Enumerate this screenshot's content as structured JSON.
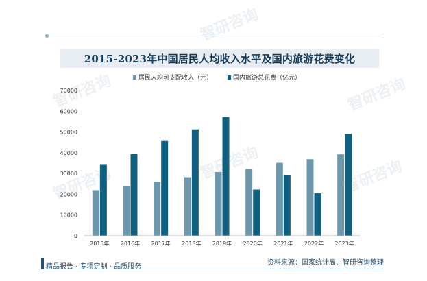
{
  "title": "2015-2023年中国居民人均收入水平及国内旅游花费变化",
  "footer": {
    "left": "精品报告 · 专项定制 · 品质服务",
    "right": "资料来源：国家统计局、智研咨询整理"
  },
  "watermark": "智研咨询",
  "colors": {
    "income": "#6d97ab",
    "spending": "#0f5f7f"
  },
  "chart_data": {
    "type": "bar",
    "categories": [
      "2015年",
      "2016年",
      "2017年",
      "2018年",
      "2019年",
      "2020年",
      "2021年",
      "2022年",
      "2023年"
    ],
    "series": [
      {
        "name": "居民人均可支配收入（元）",
        "values": [
          21966,
          23821,
          25974,
          28228,
          30733,
          32189,
          35128,
          36883,
          39218
        ]
      },
      {
        "name": "国内旅游总花费（亿元）",
        "values": [
          34195,
          39390,
          45661,
          51278,
          57251,
          22286,
          29191,
          20444,
          49133
        ]
      }
    ],
    "yticks": [
      0,
      10000,
      20000,
      30000,
      40000,
      50000,
      60000,
      70000
    ],
    "ylim": [
      0,
      70000
    ],
    "legend_position": "top"
  }
}
